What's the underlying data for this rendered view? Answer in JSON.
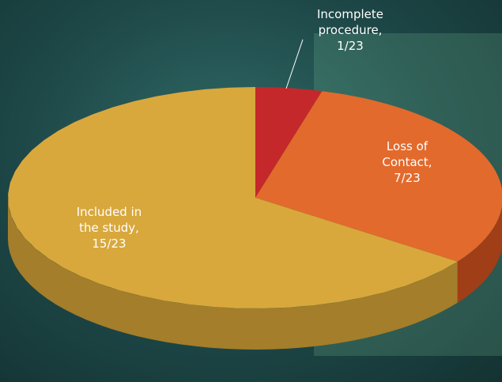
{
  "chart_data": {
    "type": "pie",
    "categories": [
      "Incomplete procedure,",
      "Loss of Contact,",
      "Included in the study,"
    ],
    "values": [
      1,
      7,
      15
    ],
    "value_labels": [
      "1/23",
      "7/23",
      "15/23"
    ],
    "colors": [
      "#c4282b",
      "#e26a2c",
      "#d8a83c"
    ],
    "side_colors": [
      "#861818",
      "#a03e18",
      "#a47e2a"
    ]
  }
}
